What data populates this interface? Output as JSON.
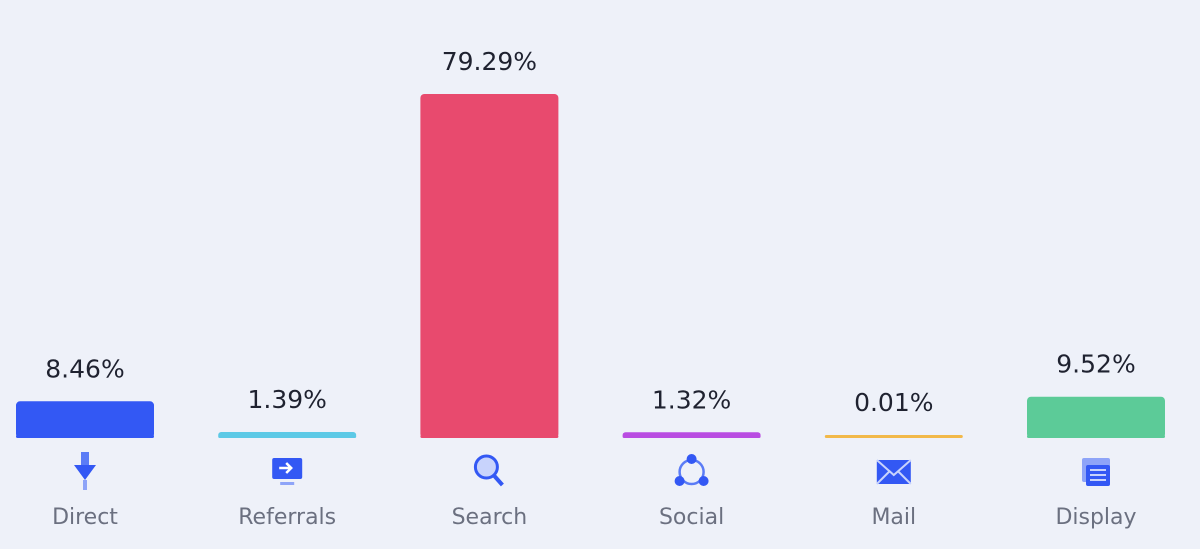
{
  "chart_data": {
    "type": "bar",
    "categories": [
      "Direct",
      "Referrals",
      "Search",
      "Social",
      "Mail",
      "Display"
    ],
    "values": [
      8.46,
      1.39,
      79.29,
      1.32,
      0.01,
      9.52
    ],
    "value_labels": [
      "8.46%",
      "1.39%",
      "79.29%",
      "1.32%",
      "0.01%",
      "9.52%"
    ],
    "colors": [
      "#3358f4",
      "#5cc9e6",
      "#e84a6e",
      "#b94ce2",
      "#f2b94a",
      "#5ccb98"
    ]
  }
}
